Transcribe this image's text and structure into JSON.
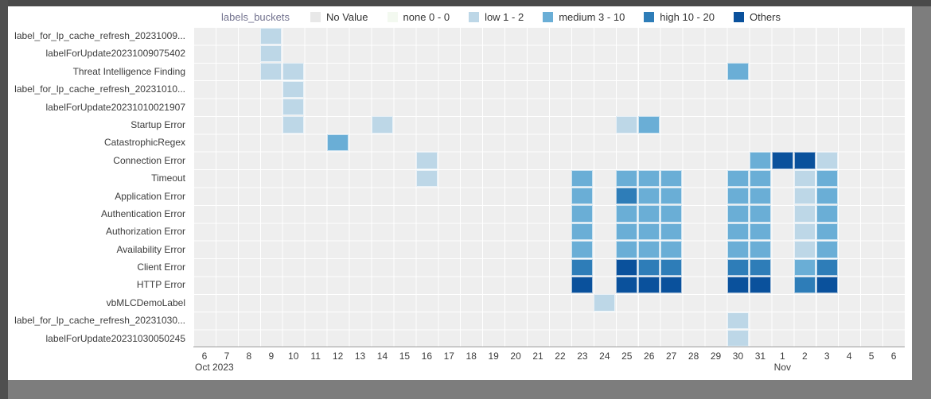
{
  "legend": {
    "title": "labels_buckets",
    "items": [
      {
        "label": "No Value",
        "color": "#e8e8e8"
      },
      {
        "label": "none 0 - 0",
        "color": "#f3f9f0"
      },
      {
        "label": "low 1 - 2",
        "color": "#bdd7e7"
      },
      {
        "label": "medium 3 - 10",
        "color": "#6aaed6"
      },
      {
        "label": "high 10 - 20",
        "color": "#2e7db8"
      },
      {
        "label": "Others",
        "color": "#0a519c"
      }
    ]
  },
  "chart_data": {
    "type": "heatmap",
    "x_axis_title": "Oct 2023 - Nov 2023, interval 1 day",
    "x_labels": [
      "6",
      "7",
      "8",
      "9",
      "10",
      "11",
      "12",
      "13",
      "14",
      "15",
      "16",
      "17",
      "18",
      "19",
      "20",
      "21",
      "22",
      "23",
      "24",
      "25",
      "26",
      "27",
      "28",
      "29",
      "30",
      "31",
      "1",
      "2",
      "3",
      "4",
      "5",
      "6"
    ],
    "month_labels": [
      {
        "index": 0,
        "label": "Oct 2023"
      },
      {
        "index": 26,
        "label": "Nov"
      }
    ],
    "rows": [
      "label_for_lp_cache_refresh_20231009...",
      "labelForUpdate20231009075402",
      "Threat Intelligence Finding",
      "label_for_lp_cache_refresh_20231010...",
      "labelForUpdate20231010021907",
      "Startup Error",
      "CatastrophicRegex",
      "Connection Error",
      "Timeout",
      "Application Error",
      "Authentication Error",
      "Authorization Error",
      "Availability Error",
      "Client Error",
      "HTTP Error",
      "vbMLCDemoLabel",
      "label_for_lp_cache_refresh_20231030...",
      "labelForUpdate20231030050245"
    ],
    "buckets": {
      "no_value": "#e8e8e8",
      "none": "#f3f9f0",
      "low": "#bdd7e7",
      "medium": "#6aaed6",
      "high": "#2e7db8",
      "others": "#0a519c"
    },
    "bucket_ranges": {
      "none": "0 - 0",
      "low": "1 - 2",
      "medium": "3 - 10",
      "high": "10 - 20"
    },
    "cells": [
      {
        "r": 0,
        "c": 3,
        "b": "low"
      },
      {
        "r": 1,
        "c": 3,
        "b": "low"
      },
      {
        "r": 2,
        "c": 3,
        "b": "low"
      },
      {
        "r": 2,
        "c": 4,
        "b": "low"
      },
      {
        "r": 2,
        "c": 24,
        "b": "medium"
      },
      {
        "r": 3,
        "c": 4,
        "b": "low"
      },
      {
        "r": 4,
        "c": 4,
        "b": "low"
      },
      {
        "r": 5,
        "c": 4,
        "b": "low"
      },
      {
        "r": 5,
        "c": 8,
        "b": "low"
      },
      {
        "r": 5,
        "c": 19,
        "b": "low"
      },
      {
        "r": 5,
        "c": 20,
        "b": "medium"
      },
      {
        "r": 6,
        "c": 6,
        "b": "medium"
      },
      {
        "r": 7,
        "c": 10,
        "b": "low"
      },
      {
        "r": 7,
        "c": 25,
        "b": "medium"
      },
      {
        "r": 7,
        "c": 26,
        "b": "others"
      },
      {
        "r": 7,
        "c": 27,
        "b": "others"
      },
      {
        "r": 7,
        "c": 28,
        "b": "low"
      },
      {
        "r": 8,
        "c": 10,
        "b": "low"
      },
      {
        "r": 8,
        "c": 17,
        "b": "medium"
      },
      {
        "r": 8,
        "c": 19,
        "b": "medium"
      },
      {
        "r": 8,
        "c": 20,
        "b": "medium"
      },
      {
        "r": 8,
        "c": 21,
        "b": "medium"
      },
      {
        "r": 8,
        "c": 24,
        "b": "medium"
      },
      {
        "r": 8,
        "c": 25,
        "b": "medium"
      },
      {
        "r": 8,
        "c": 27,
        "b": "low"
      },
      {
        "r": 8,
        "c": 28,
        "b": "medium"
      },
      {
        "r": 9,
        "c": 17,
        "b": "medium"
      },
      {
        "r": 9,
        "c": 19,
        "b": "high"
      },
      {
        "r": 9,
        "c": 20,
        "b": "medium"
      },
      {
        "r": 9,
        "c": 21,
        "b": "medium"
      },
      {
        "r": 9,
        "c": 24,
        "b": "medium"
      },
      {
        "r": 9,
        "c": 25,
        "b": "medium"
      },
      {
        "r": 9,
        "c": 27,
        "b": "low"
      },
      {
        "r": 9,
        "c": 28,
        "b": "medium"
      },
      {
        "r": 10,
        "c": 17,
        "b": "medium"
      },
      {
        "r": 10,
        "c": 19,
        "b": "medium"
      },
      {
        "r": 10,
        "c": 20,
        "b": "medium"
      },
      {
        "r": 10,
        "c": 21,
        "b": "medium"
      },
      {
        "r": 10,
        "c": 24,
        "b": "medium"
      },
      {
        "r": 10,
        "c": 25,
        "b": "medium"
      },
      {
        "r": 10,
        "c": 27,
        "b": "low"
      },
      {
        "r": 10,
        "c": 28,
        "b": "medium"
      },
      {
        "r": 11,
        "c": 17,
        "b": "medium"
      },
      {
        "r": 11,
        "c": 19,
        "b": "medium"
      },
      {
        "r": 11,
        "c": 20,
        "b": "medium"
      },
      {
        "r": 11,
        "c": 21,
        "b": "medium"
      },
      {
        "r": 11,
        "c": 24,
        "b": "medium"
      },
      {
        "r": 11,
        "c": 25,
        "b": "medium"
      },
      {
        "r": 11,
        "c": 27,
        "b": "low"
      },
      {
        "r": 11,
        "c": 28,
        "b": "medium"
      },
      {
        "r": 12,
        "c": 17,
        "b": "medium"
      },
      {
        "r": 12,
        "c": 19,
        "b": "medium"
      },
      {
        "r": 12,
        "c": 20,
        "b": "medium"
      },
      {
        "r": 12,
        "c": 21,
        "b": "medium"
      },
      {
        "r": 12,
        "c": 24,
        "b": "medium"
      },
      {
        "r": 12,
        "c": 25,
        "b": "medium"
      },
      {
        "r": 12,
        "c": 27,
        "b": "low"
      },
      {
        "r": 12,
        "c": 28,
        "b": "medium"
      },
      {
        "r": 13,
        "c": 17,
        "b": "high"
      },
      {
        "r": 13,
        "c": 19,
        "b": "others"
      },
      {
        "r": 13,
        "c": 20,
        "b": "high"
      },
      {
        "r": 13,
        "c": 21,
        "b": "high"
      },
      {
        "r": 13,
        "c": 24,
        "b": "high"
      },
      {
        "r": 13,
        "c": 25,
        "b": "high"
      },
      {
        "r": 13,
        "c": 27,
        "b": "medium"
      },
      {
        "r": 13,
        "c": 28,
        "b": "high"
      },
      {
        "r": 14,
        "c": 17,
        "b": "others"
      },
      {
        "r": 14,
        "c": 19,
        "b": "others"
      },
      {
        "r": 14,
        "c": 20,
        "b": "others"
      },
      {
        "r": 14,
        "c": 21,
        "b": "others"
      },
      {
        "r": 14,
        "c": 24,
        "b": "others"
      },
      {
        "r": 14,
        "c": 25,
        "b": "others"
      },
      {
        "r": 14,
        "c": 27,
        "b": "high"
      },
      {
        "r": 14,
        "c": 28,
        "b": "others"
      },
      {
        "r": 15,
        "c": 18,
        "b": "low"
      },
      {
        "r": 16,
        "c": 24,
        "b": "low"
      },
      {
        "r": 17,
        "c": 24,
        "b": "low"
      }
    ]
  }
}
